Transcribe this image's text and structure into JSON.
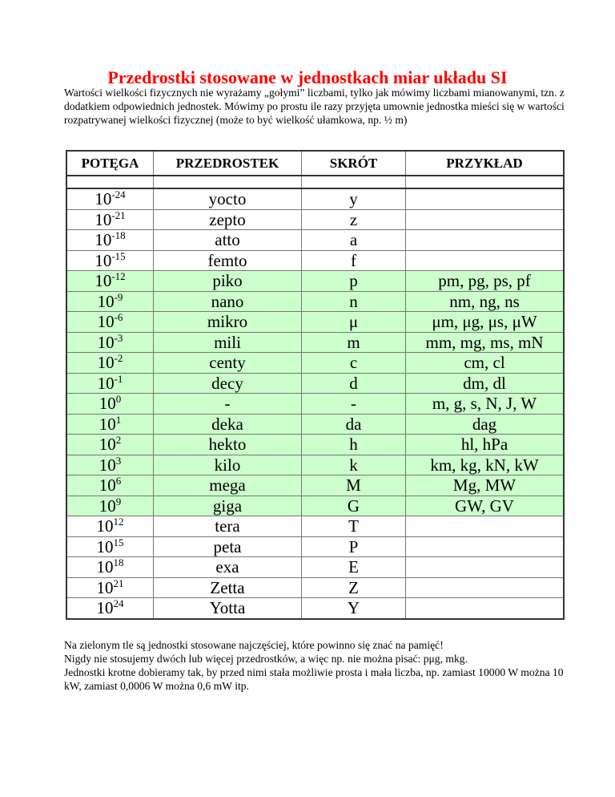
{
  "title": "Przedrostki stosowane w jednostkach miar układu SI",
  "intro": "Wartości wielkości fizycznych nie wyrażamy „gołymi” liczbami, tylko jak mówimy liczbami mianowanymi, tzn. z dodatkiem odpowiednich jednostek. Mówimy po prostu ile razy przyjęta umownie jednostka mieści się w wartości rozpatrywanej wielkości fizycznej (może to być wielkość ułamkowa, np. ½ m)",
  "highlight_color": "#ccffcc",
  "table": {
    "headers": [
      "POTĘGA",
      "PRZEDROSTEK",
      "SKRÓT",
      "PRZYKŁAD"
    ],
    "rows": [
      {
        "base": "10",
        "exp": "-24",
        "prefix": "yocto",
        "symbol": "y",
        "example": "",
        "highlighted": false
      },
      {
        "base": "10",
        "exp": "-21",
        "prefix": "zepto",
        "symbol": "z",
        "example": "",
        "highlighted": false
      },
      {
        "base": "10",
        "exp": "-18",
        "prefix": "atto",
        "symbol": "a",
        "example": "",
        "highlighted": false
      },
      {
        "base": "10",
        "exp": "-15",
        "prefix": "femto",
        "symbol": "f",
        "example": "",
        "highlighted": false
      },
      {
        "base": "10",
        "exp": "-12",
        "prefix": "piko",
        "symbol": "p",
        "example": "pm, pg, ps, pf",
        "highlighted": true
      },
      {
        "base": "10",
        "exp": "-9",
        "prefix": "nano",
        "symbol": "n",
        "example": "nm, ng, ns",
        "highlighted": true
      },
      {
        "base": "10",
        "exp": "-6",
        "prefix": "mikro",
        "symbol": "μ",
        "example": "μm, μg, μs, μW",
        "highlighted": true
      },
      {
        "base": "10",
        "exp": "-3",
        "prefix": "mili",
        "symbol": "m",
        "example": "mm, mg, ms, mN",
        "highlighted": true
      },
      {
        "base": "10",
        "exp": "-2",
        "prefix": "centy",
        "symbol": "c",
        "example": "cm, cl",
        "highlighted": true
      },
      {
        "base": "10",
        "exp": "-1",
        "prefix": "decy",
        "symbol": "d",
        "example": "dm, dl",
        "highlighted": true
      },
      {
        "base": "10",
        "exp": "0",
        "prefix": "-",
        "symbol": "-",
        "example": "m, g, s, N, J, W",
        "highlighted": true
      },
      {
        "base": "10",
        "exp": "1",
        "prefix": "deka",
        "symbol": "da",
        "example": "dag",
        "highlighted": true
      },
      {
        "base": "10",
        "exp": "2",
        "prefix": "hekto",
        "symbol": "h",
        "example": "hl, hPa",
        "highlighted": true
      },
      {
        "base": "10",
        "exp": "3",
        "prefix": "kilo",
        "symbol": "k",
        "example": "km, kg, kN, kW",
        "highlighted": true
      },
      {
        "base": "10",
        "exp": "6",
        "prefix": "mega",
        "symbol": "M",
        "example": "Mg, MW",
        "highlighted": true
      },
      {
        "base": "10",
        "exp": "9",
        "prefix": "giga",
        "symbol": "G",
        "example": "GW, GV",
        "highlighted": true
      },
      {
        "base": "10",
        "exp": "12",
        "prefix": "tera",
        "symbol": "T",
        "example": "",
        "highlighted": false
      },
      {
        "base": "10",
        "exp": "15",
        "prefix": "peta",
        "symbol": "P",
        "example": "",
        "highlighted": false
      },
      {
        "base": "10",
        "exp": "18",
        "prefix": "exa",
        "symbol": "E",
        "example": "",
        "highlighted": false
      },
      {
        "base": "10",
        "exp": "21",
        "prefix": "Zetta",
        "symbol": "Z",
        "example": "",
        "highlighted": false
      },
      {
        "base": "10",
        "exp": "24",
        "prefix": "Yotta",
        "symbol": "Y",
        "example": "",
        "highlighted": false
      }
    ]
  },
  "outro": [
    "Na zielonym tle są jednostki stosowane najczęściej, które powinno się znać na pamięć!",
    "Nigdy nie stosujemy dwóch lub więcej przedrostków, a więc np. nie można pisać: pμg, mkg.",
    "Jednostki krotne dobieramy tak, by przed nimi stała możliwie prosta i mała liczba, np. zamiast 10000 W można 10 kW, zamiast 0,0006 W można 0,6 mW itp."
  ]
}
